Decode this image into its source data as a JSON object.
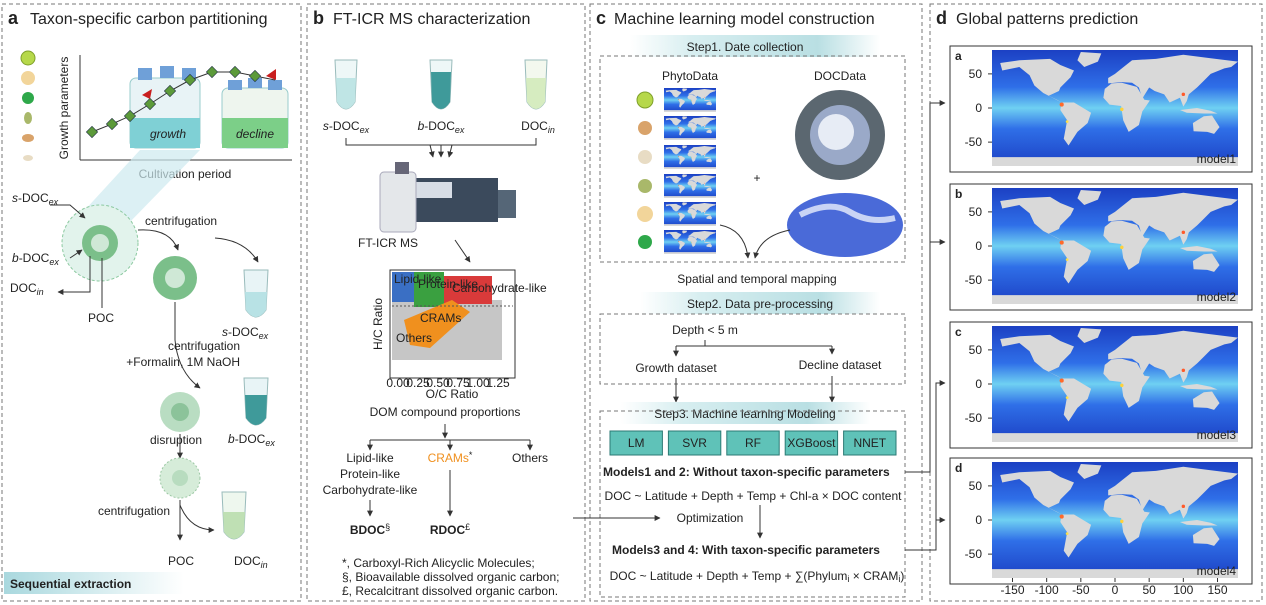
{
  "panel_a": {
    "letter": "a",
    "title": "Taxon-specific carbon partitioning",
    "y_axis": "Growth parameters",
    "x_axis": "Cultivation period",
    "phases": [
      "growth",
      "decline"
    ],
    "s_doc_ex": [
      "s",
      "-DOC",
      "ex"
    ],
    "b_doc_ex": [
      "b",
      "-DOC",
      "ex"
    ],
    "doc_in": [
      "DOC",
      "in"
    ],
    "poc": "POC",
    "centrifugation": "centrifugation",
    "treatment": "+Formalin, 1M NaOH",
    "disruption": "disruption",
    "footer": "Sequential extraction"
  },
  "panel_b": {
    "letter": "b",
    "title": "FT-ICR MS characterization",
    "s_doc_ex": [
      "s",
      "-DOC",
      "ex"
    ],
    "b_doc_ex": [
      "b",
      "-DOC",
      "ex"
    ],
    "doc_in": [
      "DOC",
      "in"
    ],
    "instrument": "FT-ICR MS",
    "plot": {
      "y_axis": "H/C Ratio",
      "x_axis": "O/C Ratio",
      "xticks": [
        "0.00",
        "0.25",
        "0.50",
        "0.75",
        "1.00",
        "1.25"
      ],
      "regions": [
        "Lipid-like",
        "Protein-like",
        "Carbohydrate-like",
        "CRAMs",
        "Others"
      ]
    },
    "proportions": "DOM compound proportions",
    "classes": {
      "lipid": "Lipid-like",
      "protein": "Protein-like",
      "carbohydrate": "Carbohydrate-like",
      "crams": [
        "CRAMs",
        "*"
      ],
      "others": "Others"
    },
    "bdoc": [
      "BDOC",
      "§"
    ],
    "rdoc": [
      "RDOC",
      "£"
    ],
    "footnotes": [
      "*, Carboxyl-Rich Alicyclic Molecules;",
      "§, Bioavailable dissolved organic carbon;",
      "£, Recalcitrant dissolved organic carbon."
    ]
  },
  "panel_c": {
    "letter": "c",
    "title": "Machine learning model construction",
    "step1": "Step1. Date collection",
    "phyto": "PhytoData",
    "doc": "DOCData",
    "plus": "+",
    "mapping": "Spatial and temporal mapping",
    "step2": "Step2. Data pre-processing",
    "depth": "Depth < 5 m",
    "growth": "Growth dataset",
    "decline": "Decline dataset",
    "step3": "Step3. Machine learning Modeling",
    "models": [
      "LM",
      "SVR",
      "RF",
      "XGBoost",
      "NNET"
    ],
    "models12": "Models1 and 2: Without taxon-specific parameters",
    "formula1": "DOC ~ Latitude + Depth + Temp + Chl-a × DOC content",
    "optimization": "Optimization",
    "models34": "Models3 and 4: With taxon-specific parameters",
    "formula2": [
      "DOC ~ Latitude + Depth + Temp + ∑(Phylum",
      "i",
      " × CRAM",
      "i",
      ")"
    ]
  },
  "panel_d": {
    "letter": "d",
    "title": "Global patterns prediction",
    "maps": [
      {
        "letter": "a",
        "name": "model1"
      },
      {
        "letter": "b",
        "name": "model2"
      },
      {
        "letter": "c",
        "name": "model3"
      },
      {
        "letter": "d",
        "name": "model4"
      }
    ],
    "yticks": [
      50,
      0,
      -50
    ],
    "xticks": [
      -150,
      -100,
      -50,
      0,
      50,
      100,
      150
    ]
  }
}
